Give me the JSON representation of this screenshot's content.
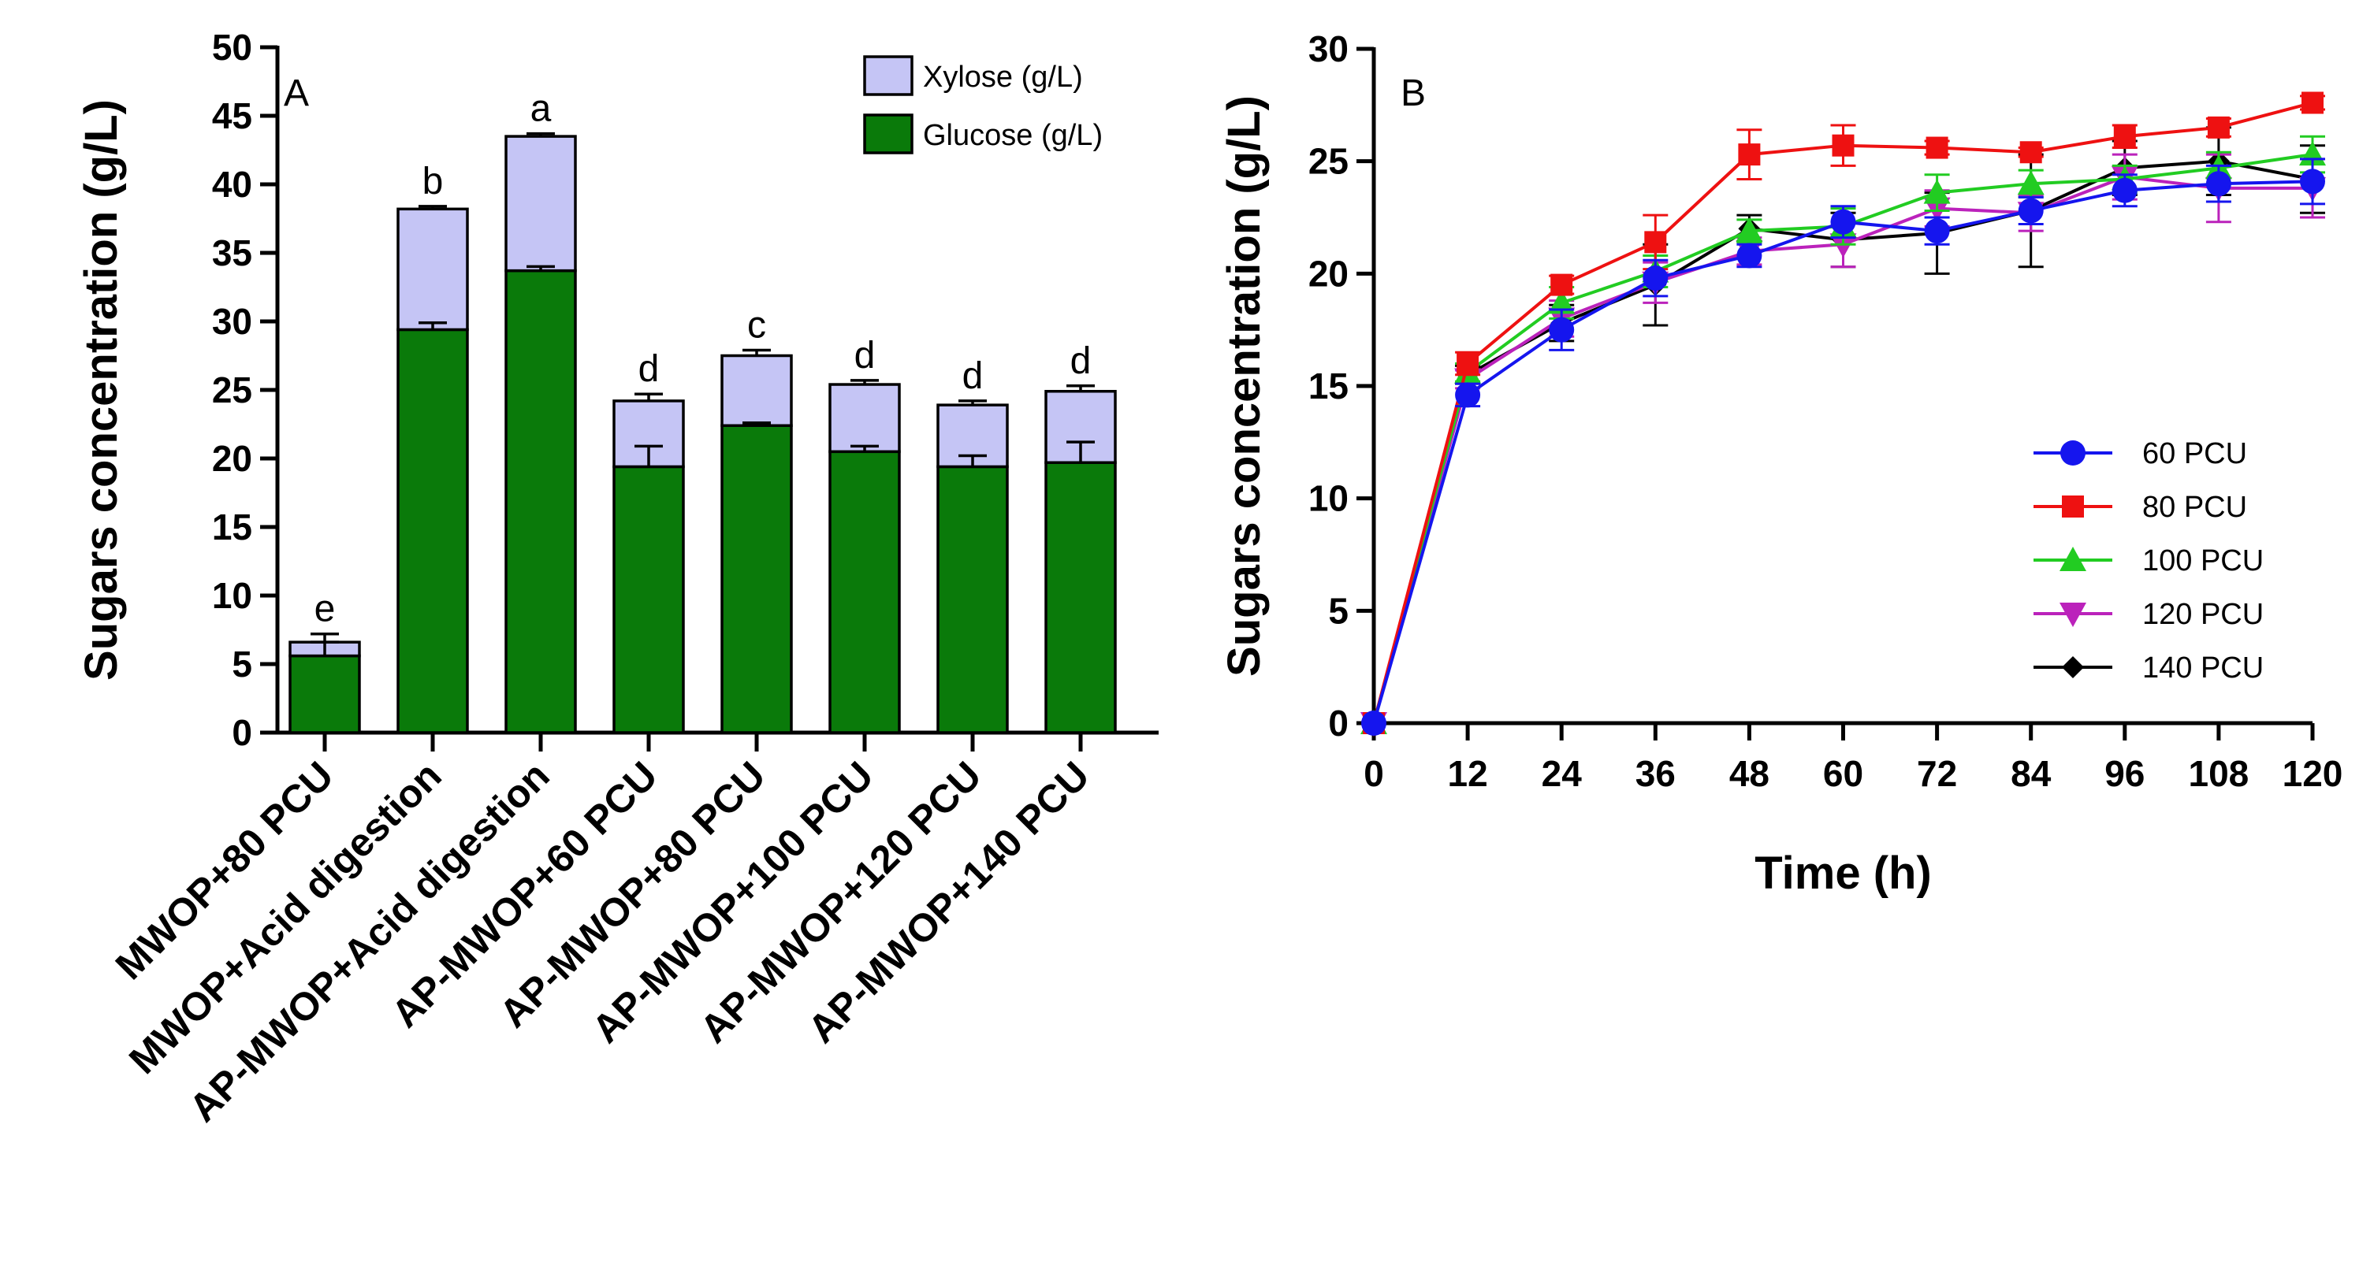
{
  "chart_data": [
    {
      "type": "bar",
      "stacked": true,
      "panel_label": "A",
      "ylabel": "Sugars concentration (g/L)",
      "xlabel": "",
      "ylim": [
        0,
        50
      ],
      "yticks": [
        "0",
        "5",
        "10",
        "15",
        "20",
        "25",
        "30",
        "35",
        "40",
        "45",
        "50"
      ],
      "categories": [
        "MWOP+80 PCU",
        "MWOP+Acid digestion",
        "AP-MWOP+Acid digestion",
        "AP-MWOP+60 PCU",
        "AP-MWOP+80 PCU",
        "AP-MWOP+100 PCU",
        "AP-MWOP+120 PCU",
        "AP-MWOP+140 PCU"
      ],
      "series": [
        {
          "name": "Glucose (g/L)",
          "color": "#0a7a0a",
          "values": [
            5.6,
            29.4,
            33.7,
            19.4,
            22.4,
            20.5,
            19.4,
            19.7
          ],
          "errors": [
            1.0,
            0.5,
            0.3,
            1.5,
            0.2,
            0.4,
            0.8,
            1.5
          ]
        },
        {
          "name": "Xylose (g/L)",
          "color": "#c5c5f5",
          "values": [
            1.0,
            8.8,
            9.8,
            4.8,
            5.1,
            4.9,
            4.5,
            5.2
          ],
          "errors": [
            0.6,
            0.2,
            0.2,
            0.5,
            0.4,
            0.3,
            0.3,
            0.4
          ]
        }
      ],
      "significance_letters": [
        "e",
        "b",
        "a",
        "d",
        "c",
        "d",
        "d",
        "d"
      ],
      "legend_position": "top-right"
    },
    {
      "type": "line",
      "panel_label": "B",
      "ylabel": "Sugars concentration (g/L)",
      "xlabel": "Time (h)",
      "xlim": [
        0,
        120
      ],
      "ylim": [
        0,
        30
      ],
      "x": [
        0,
        12,
        24,
        36,
        48,
        60,
        72,
        84,
        96,
        108,
        120
      ],
      "xticks": [
        "0",
        "12",
        "24",
        "36",
        "48",
        "60",
        "72",
        "84",
        "96",
        "108",
        "120"
      ],
      "yticks": [
        "0",
        "5",
        "10",
        "15",
        "20",
        "25",
        "30"
      ],
      "series": [
        {
          "name": "140 PCU",
          "color": "#000000",
          "marker": "diamond",
          "values": [
            0,
            15.5,
            17.8,
            19.5,
            22.0,
            21.5,
            21.8,
            22.8,
            24.7,
            25.0,
            24.2
          ],
          "errors": [
            0,
            0.4,
            0.8,
            1.8,
            0.6,
            1.2,
            1.8,
            2.5,
            1.2,
            1.5,
            1.5
          ]
        },
        {
          "name": "120 PCU",
          "color": "#bb22bb",
          "marker": "triangle-down",
          "values": [
            0,
            15.3,
            18.0,
            19.6,
            21.0,
            21.3,
            22.9,
            22.7,
            24.3,
            23.8,
            23.8
          ],
          "errors": [
            0,
            0.4,
            0.8,
            0.9,
            0.6,
            1.0,
            0.8,
            0.8,
            1.0,
            1.5,
            1.3
          ]
        },
        {
          "name": "100 PCU",
          "color": "#22cc22",
          "marker": "triangle-up",
          "values": [
            0,
            15.6,
            18.7,
            20.1,
            21.9,
            22.1,
            23.6,
            24.0,
            24.2,
            24.7,
            25.3
          ],
          "errors": [
            0,
            0.4,
            0.7,
            0.7,
            0.5,
            0.8,
            0.8,
            0.6,
            0.6,
            0.7,
            0.8
          ]
        },
        {
          "name": "80 PCU",
          "color": "#ee1111",
          "marker": "square",
          "values": [
            0,
            16.0,
            19.5,
            21.4,
            25.3,
            25.7,
            25.6,
            25.4,
            26.1,
            26.5,
            27.6
          ],
          "errors": [
            0,
            0.5,
            0.4,
            1.2,
            1.1,
            0.9,
            0.3,
            0.2,
            0.5,
            0.4,
            0.3
          ]
        },
        {
          "name": "60 PCU",
          "color": "#1515ee",
          "marker": "circle",
          "values": [
            0,
            14.6,
            17.5,
            19.8,
            20.8,
            22.3,
            21.9,
            22.8,
            23.7,
            24.0,
            24.1
          ],
          "errors": [
            0,
            0.5,
            0.9,
            0.8,
            0.5,
            0.7,
            0.6,
            0.6,
            0.7,
            0.8,
            1.0
          ]
        }
      ],
      "legend_order": [
        "60 PCU",
        "80 PCU",
        "100 PCU",
        "120 PCU",
        "140 PCU"
      ],
      "legend_position": "bottom-right"
    }
  ]
}
